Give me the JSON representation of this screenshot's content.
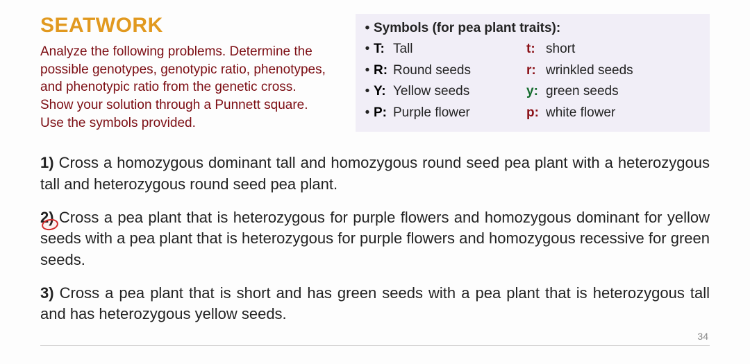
{
  "intro": {
    "title": "SEATWORK",
    "text": "Analyze the following problems. Determine the possible genotypes, genotypic ratio, phenotypes, and phenotypic ratio from the genetic cross. Show your solution through a Punnett square. Use the symbols provided."
  },
  "symbols": {
    "header": "Symbols (for pea plant traits):",
    "rows": [
      {
        "dom_sym": "T:",
        "dom_trait": "Tall",
        "rec_sym": "t:",
        "rec_trait": "short",
        "rec_class": "rec-red"
      },
      {
        "dom_sym": "R:",
        "dom_trait": "Round seeds",
        "rec_sym": "r:",
        "rec_trait": "wrinkled seeds",
        "rec_class": "rec-red"
      },
      {
        "dom_sym": "Y:",
        "dom_trait": "Yellow seeds",
        "rec_sym": "y:",
        "rec_trait": "green seeds",
        "rec_class": "rec-green"
      },
      {
        "dom_sym": "P:",
        "dom_trait": "Purple flower",
        "rec_sym": "p:",
        "rec_trait": "white flower",
        "rec_class": "rec-red"
      }
    ]
  },
  "problems": {
    "p1_num": "1)",
    "p1": " Cross a homozygous dominant tall and homozygous round seed pea plant with a heterozygous tall and heterozygous round seed pea plant.",
    "p2_num": "2)",
    "p2": " Cross a pea plant that is heterozygous for purple flowers and homozygous dominant for yellow seeds with a pea plant that is heterozygous for purple flowers and homozygous recessive for green seeds.",
    "p3_num": "3)",
    "p3": " Cross a pea plant that is short and has green seeds with a pea plant that is heterozygous tall and has heterozygous yellow seeds."
  },
  "page_number": "34",
  "colors": {
    "title": "#e1991f",
    "instruction_text": "#7c0d13",
    "symbol_box_bg": "#f1eef7",
    "rec_red": "#8a1016",
    "rec_green": "#146b2d",
    "page_bg": "#fdfdfd"
  }
}
